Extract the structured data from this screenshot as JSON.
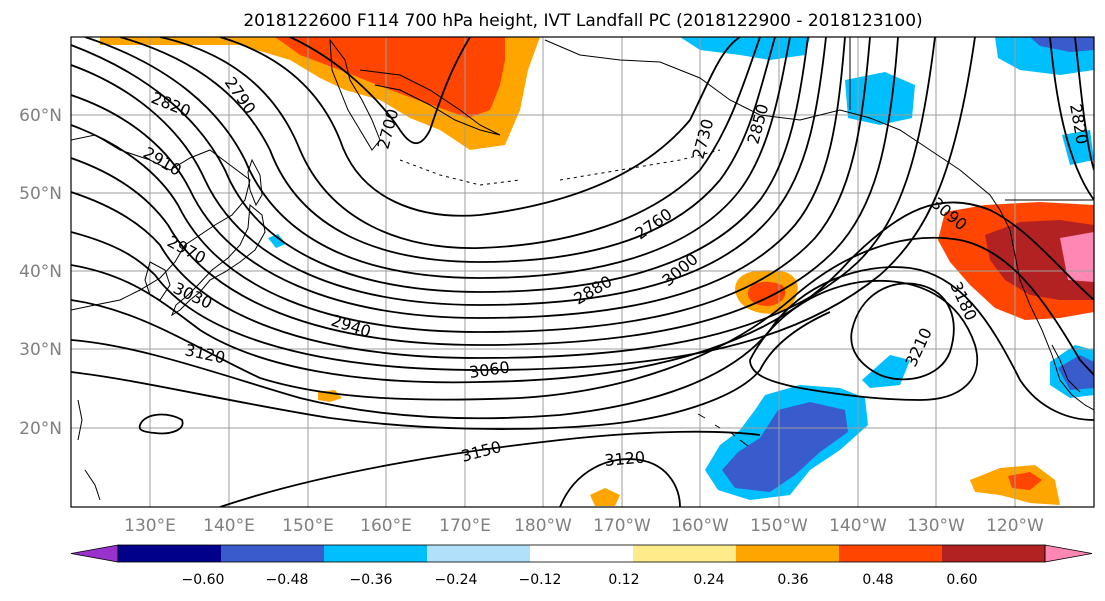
{
  "title": "2018122600 F114 700 hPa height, IVT Landfall PC (2018122900 - 2018123100)",
  "map": {
    "lat_ticks": [
      "60°N",
      "50°N",
      "40°N",
      "30°N",
      "20°N"
    ],
    "lon_ticks": [
      "130°E",
      "140°E",
      "150°E",
      "160°E",
      "170°E",
      "180°W",
      "170°W",
      "160°W",
      "150°W",
      "140°W",
      "130°W",
      "120°W"
    ],
    "height_contour_labels": [
      "2820",
      "2790",
      "2700",
      "2730",
      "2850",
      "2910",
      "2970",
      "3030",
      "3120",
      "2940",
      "2760",
      "2880",
      "3000",
      "3060",
      "3090",
      "3180",
      "3210",
      "3150",
      "3120"
    ],
    "contour_interval_m": 30
  },
  "colorbar": {
    "tick_labels": [
      "−0.60",
      "−0.48",
      "−0.36",
      "−0.24",
      "−0.12",
      "0.12",
      "0.24",
      "0.36",
      "0.48",
      "0.60"
    ],
    "colors": [
      "#9932cc",
      "#00008b",
      "#3a5bcc",
      "#00bfff",
      "#b0e0fa",
      "#ffffff",
      "#ffeb8a",
      "#ffa500",
      "#ff4500",
      "#b22222",
      "#ff87b4"
    ]
  },
  "fill_colors": {
    "red": "#ff4500",
    "orange": "#ffa500",
    "yellow": "#ffeb8a",
    "darkred": "#b22222",
    "pink": "#ff87b4",
    "lightblue": "#00bfff",
    "paleblue": "#b0e0fa",
    "blue": "#3a5bcc"
  }
}
